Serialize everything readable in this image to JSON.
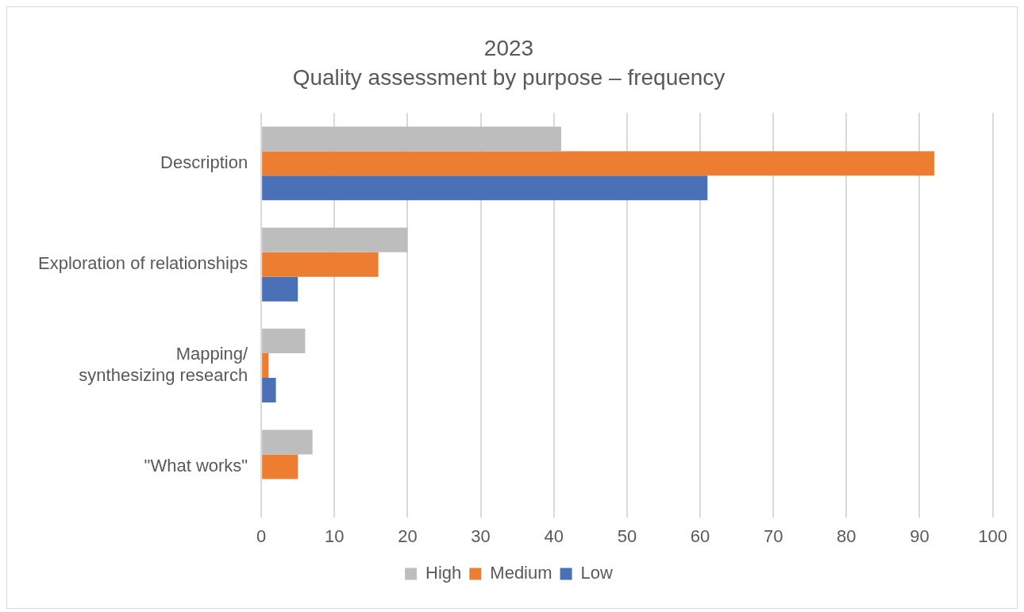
{
  "chart_data": {
    "type": "bar",
    "orientation": "horizontal",
    "title": "2023",
    "subtitle": "Quality assessment by purpose – frequency",
    "categories": [
      "Description",
      "Exploration of relationships",
      "Mapping/ synthesizing research",
      "\"What works\""
    ],
    "series": [
      {
        "name": "High",
        "color": "#bcbdbc",
        "values": [
          41,
          20,
          6,
          7
        ]
      },
      {
        "name": "Medium",
        "color": "#ed7d31",
        "values": [
          92,
          16,
          1,
          5
        ]
      },
      {
        "name": "Low",
        "color": "#4a71b8",
        "values": [
          61,
          5,
          2,
          null
        ]
      }
    ],
    "xlim": [
      0,
      100
    ],
    "xticks": [
      0,
      10,
      20,
      30,
      40,
      50,
      60,
      70,
      80,
      90,
      100
    ],
    "grid": "x",
    "legend": "bottom"
  }
}
